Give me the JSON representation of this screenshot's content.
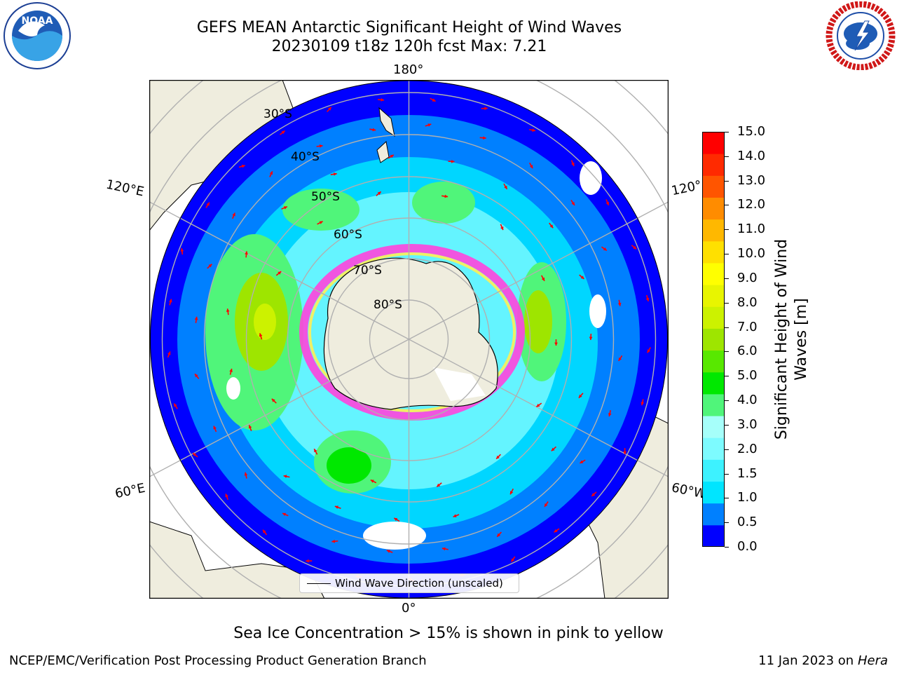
{
  "title": {
    "line1": "GEFS MEAN Antarctic Significant Height of Wind Waves",
    "line2": "20230109 t18z 120h fcst   Max: 7.21"
  },
  "logos": {
    "noaa": {
      "icon": "noaa-logo-icon",
      "text": "NOAA"
    },
    "nws": {
      "icon": "national-weather-service-logo-icon"
    }
  },
  "map": {
    "lon_labels": {
      "top": "180°",
      "bottom": "0°",
      "upper_left": "120°E",
      "upper_right": "120°",
      "lower_left": "60°E",
      "lower_right": "60°W"
    },
    "lat_labels": [
      "30°S",
      "40°S",
      "50°S",
      "60°S",
      "70°S",
      "80°S"
    ],
    "legend_label": "Wind Wave Direction (unscaled)",
    "colors": {
      "land": "#efedde",
      "ice_pink": "#ff44dd",
      "ice_yellow": "#ffee55",
      "arrow": "#ff0000"
    }
  },
  "colorbar": {
    "label": "Significant Height of Wind Waves [m]",
    "ticks": [
      "15.0",
      "14.0",
      "13.0",
      "12.0",
      "11.0",
      "10.0",
      "9.0",
      "8.0",
      "7.0",
      "6.0",
      "5.0",
      "4.0",
      "3.0",
      "2.0",
      "1.5",
      "1.0",
      "0.5",
      "0.0"
    ],
    "colors": [
      "#0000ff",
      "#0080ff",
      "#00e5ff",
      "#3df2ff",
      "#7dfbff",
      "#a6fffa",
      "#50f57a",
      "#00e800",
      "#58e800",
      "#9ee500",
      "#ccf200",
      "#e8f500",
      "#ffff00",
      "#ffe000",
      "#ffb800",
      "#ff8c00",
      "#ff5500",
      "#ff2a00",
      "#ff0000"
    ]
  },
  "note": "Sea Ice Concentration > 15% is shown in pink to yellow",
  "footer": {
    "left": "NCEP/EMC/Verification Post Processing Product Generation Branch",
    "right_date": "11 Jan 2023 on ",
    "right_machine": "Hera"
  }
}
